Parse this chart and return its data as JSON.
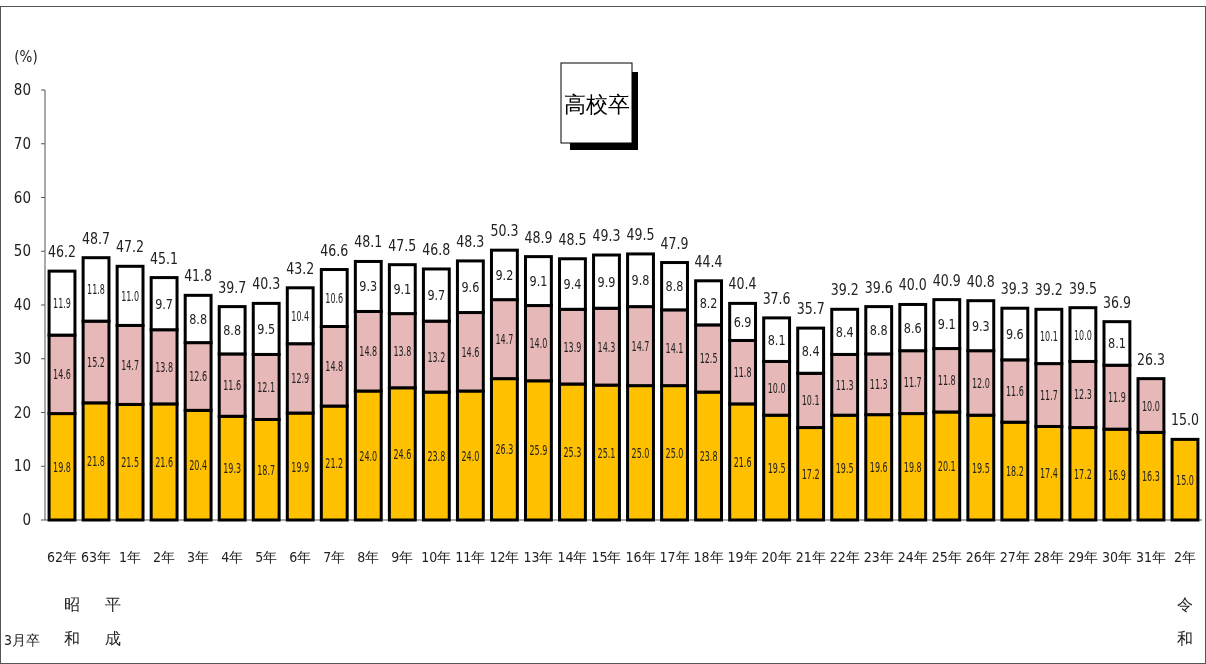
{
  "chart_data": {
    "type": "bar",
    "title": "高校卒",
    "ylabel": "(%)",
    "stacked": true,
    "categories": [
      "62年",
      "63年",
      "1年",
      "2年",
      "3年",
      "4年",
      "5年",
      "6年",
      "7年",
      "8年",
      "9年",
      "10年",
      "11年",
      "12年",
      "13年",
      "14年",
      "15年",
      "16年",
      "17年",
      "18年",
      "19年",
      "20年",
      "21年",
      "22年",
      "23年",
      "24年",
      "25年",
      "26年",
      "27年",
      "28年",
      "29年",
      "30年",
      "31年",
      "2年"
    ],
    "series": [
      {
        "color": "#ffc000",
        "values": [
          19.8,
          21.8,
          21.5,
          21.6,
          20.4,
          19.3,
          18.7,
          19.9,
          21.2,
          24.0,
          24.6,
          23.8,
          24.0,
          26.3,
          25.9,
          25.3,
          25.1,
          25.0,
          25.0,
          23.8,
          21.6,
          19.5,
          17.2,
          19.5,
          19.6,
          19.8,
          20.1,
          19.5,
          18.2,
          17.4,
          17.2,
          16.9,
          16.3,
          15.0
        ],
        "value_labels": [
          "19.8",
          "21.8",
          "21.5",
          "21.6",
          "20.4",
          "19.3",
          "18.7",
          "19.9",
          "21.2",
          "24.0",
          "24.6",
          "23.8",
          "24.0",
          "26.3",
          "25.9",
          "25.3",
          "25.1",
          "25.0",
          "25.0",
          "23.8",
          "21.6",
          "19.5",
          "17.2",
          "19.5",
          "19.6",
          "19.8",
          "20.1",
          "19.5",
          "18.2",
          "17.4",
          "17.2",
          "16.9",
          "16.3",
          "15.0"
        ]
      },
      {
        "color": "#e6b8b7",
        "values": [
          14.6,
          15.2,
          14.7,
          13.8,
          12.6,
          11.6,
          12.1,
          12.9,
          14.8,
          14.8,
          13.8,
          13.2,
          14.6,
          14.7,
          14.0,
          13.9,
          14.3,
          14.7,
          14.1,
          12.5,
          11.8,
          10.0,
          10.1,
          11.3,
          11.3,
          11.7,
          11.8,
          12.0,
          11.6,
          11.7,
          12.3,
          11.9,
          10.0,
          null
        ],
        "value_labels": [
          "14.6",
          "15.2",
          "14.7",
          "13.8",
          "12.6",
          "11.6",
          "12.1",
          "12.9",
          "14.8",
          "14.8",
          "13.8",
          "13.2",
          "14.6",
          "14.7",
          "14.0",
          "13.9",
          "14.3",
          "14.7",
          "14.1",
          "12.5",
          "11.8",
          "10.0",
          "10.1",
          "11.3",
          "11.3",
          "11.7",
          "11.8",
          "12.0",
          "11.6",
          "11.7",
          "12.3",
          "11.9",
          "10.0",
          null
        ]
      },
      {
        "color": "#ffffff",
        "values": [
          11.9,
          11.8,
          11.0,
          9.7,
          8.8,
          8.8,
          9.5,
          10.4,
          10.6,
          9.3,
          9.1,
          9.7,
          9.6,
          9.2,
          9.1,
          9.4,
          9.9,
          9.8,
          8.8,
          8.2,
          6.9,
          8.1,
          8.4,
          8.4,
          8.8,
          8.6,
          9.1,
          9.3,
          9.6,
          10.1,
          10.0,
          8.1,
          null,
          null
        ],
        "value_labels": [
          "11.9",
          "11.8",
          "11.0",
          "9.7",
          "8.8",
          "8.8",
          "9.5",
          "10.4",
          "10.6",
          "9.3",
          "9.1",
          "9.7",
          "9.6",
          "9.2",
          "9.1",
          "9.4",
          "9.9",
          "9.8",
          "8.8",
          "8.2",
          "6.9",
          "8.1",
          "8.4",
          "8.4",
          "8.8",
          "8.6",
          "9.1",
          "9.3",
          "9.6",
          "10.1",
          "10.0",
          "8.1",
          null,
          null
        ]
      }
    ],
    "totals": [
      "46.2",
      "48.7",
      "47.2",
      "45.1",
      "41.8",
      "39.7",
      "40.3",
      "43.2",
      "46.6",
      "48.1",
      "47.5",
      "46.8",
      "48.3",
      "50.3",
      "48.9",
      "48.5",
      "49.3",
      "49.5",
      "47.9",
      "44.4",
      "40.4",
      "37.6",
      "35.7",
      "39.2",
      "39.6",
      "40.0",
      "40.9",
      "40.8",
      "39.3",
      "39.2",
      "39.5",
      "36.9",
      "26.3",
      "15.0"
    ],
    "ylim": [
      0,
      80
    ],
    "yticks": [
      0,
      10,
      20,
      30,
      40,
      50,
      60,
      70,
      80
    ],
    "annotations": [
      "3月卒",
      "昭和",
      "平成",
      "令和"
    ]
  }
}
